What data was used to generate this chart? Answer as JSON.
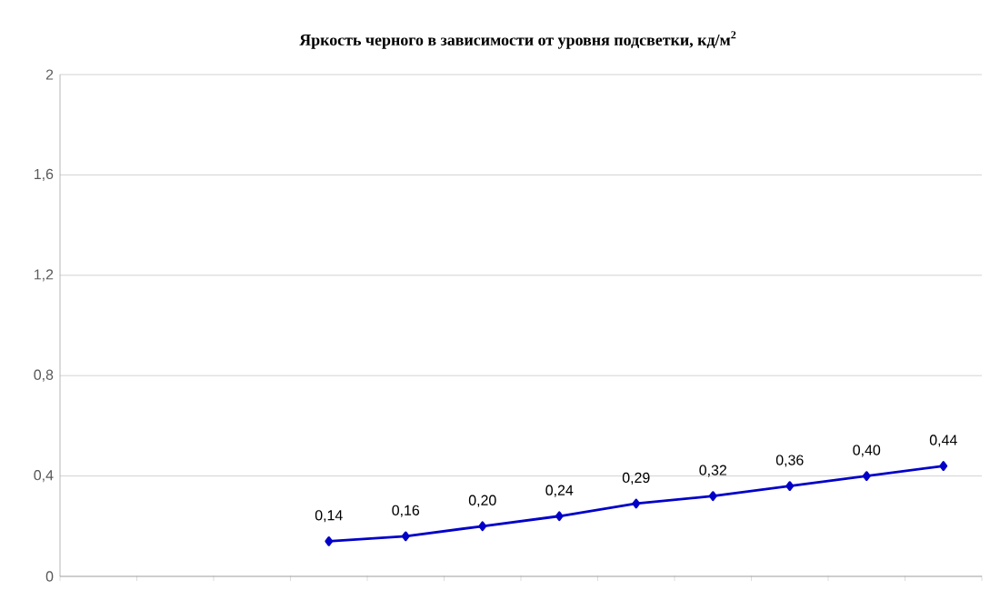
{
  "chart_data": {
    "type": "line",
    "title": "Яркость черного в зависимости от уровня подсветки, кд/м$^{2}$",
    "categories": [
      null,
      null,
      null,
      null,
      null,
      null,
      null,
      null,
      null,
      null,
      null,
      null
    ],
    "values": [
      null,
      null,
      null,
      0.14,
      0.16,
      0.2,
      0.24,
      0.29,
      0.32,
      0.36,
      0.4,
      0.44
    ],
    "value_labels": [
      null,
      null,
      null,
      "0,14",
      "0,16",
      "0,20",
      "0,24",
      "0,29",
      "0,32",
      "0,36",
      "0,40",
      "0,44"
    ],
    "color": "#0000c8",
    "marker": "diamond",
    "line_style": "solid",
    "ylim": [
      0,
      2
    ],
    "yticks": [
      0,
      {
        "value": 0.4,
        "label": "0,4"
      },
      {
        "value": 0.8,
        "label": "0,8"
      },
      {
        "value": 1.2,
        "label": "1,2"
      },
      {
        "value": 1.6,
        "label": "1,6"
      },
      2
    ],
    "grid": "y",
    "tick_labels": "y"
  }
}
